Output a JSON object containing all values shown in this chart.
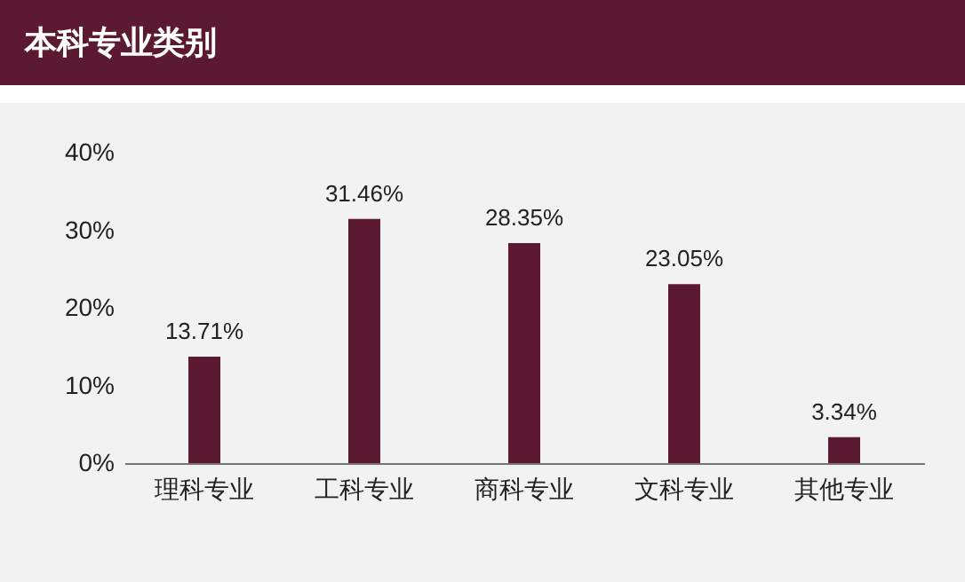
{
  "chart_data": {
    "type": "bar",
    "title": "本科专业类别",
    "categories": [
      "理科专业",
      "工科专业",
      "商科专业",
      "文科专业",
      "其他专业"
    ],
    "values": [
      13.71,
      31.46,
      28.35,
      23.05,
      3.34
    ],
    "value_labels": [
      "13.71%",
      "31.46%",
      "28.35%",
      "23.05%",
      "3.34%"
    ],
    "color": "#5c1a32",
    "ylim": [
      0,
      40
    ],
    "yticks": [
      {
        "value": 0,
        "label": "0%"
      },
      {
        "value": 10,
        "label": "10%"
      },
      {
        "value": 20,
        "label": "20%"
      },
      {
        "value": 30,
        "label": "30%"
      },
      {
        "value": 40,
        "label": "40%"
      }
    ],
    "grid": false
  }
}
